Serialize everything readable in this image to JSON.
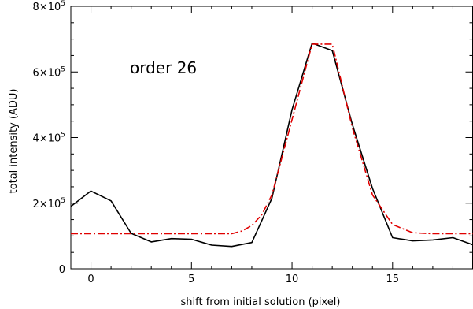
{
  "chart_data": {
    "type": "line",
    "title": "",
    "xlabel": "shift from initial solution (pixel)",
    "ylabel": "total intensity (ADU)",
    "annotation": "order 26",
    "xlim": [
      -1,
      19
    ],
    "ylim": [
      0,
      800000
    ],
    "x_ticks": [
      {
        "value": 0,
        "label": "0"
      },
      {
        "value": 5,
        "label": "5"
      },
      {
        "value": 10,
        "label": "10"
      },
      {
        "value": 15,
        "label": "15"
      }
    ],
    "y_ticks": [
      {
        "value": 0,
        "base": "0",
        "exp": ""
      },
      {
        "value": 200000,
        "base": "2×10",
        "exp": "5"
      },
      {
        "value": 400000,
        "base": "4×10",
        "exp": "5"
      },
      {
        "value": 600000,
        "base": "6×10",
        "exp": "5"
      },
      {
        "value": 800000,
        "base": "8×10",
        "exp": "5"
      }
    ],
    "grid": false,
    "series": [
      {
        "style": "solid",
        "color": "#000000",
        "points": [
          [
            -1,
            190000
          ],
          [
            0,
            237000
          ],
          [
            1,
            207000
          ],
          [
            2,
            108000
          ],
          [
            3,
            82000
          ],
          [
            4,
            92000
          ],
          [
            5,
            90000
          ],
          [
            6,
            72000
          ],
          [
            7,
            68000
          ],
          [
            8,
            80000
          ],
          [
            9,
            215000
          ],
          [
            10,
            485000
          ],
          [
            11,
            688000
          ],
          [
            12,
            665000
          ],
          [
            13,
            440000
          ],
          [
            14,
            245000
          ],
          [
            15,
            95000
          ],
          [
            16,
            85000
          ],
          [
            17,
            88000
          ],
          [
            18,
            95000
          ],
          [
            19,
            73000
          ]
        ]
      },
      {
        "style": "dash-dot",
        "color": "#e00000",
        "points": [
          [
            -1,
            107000
          ],
          [
            7,
            107000
          ],
          [
            7.5,
            115000
          ],
          [
            8,
            132000
          ],
          [
            8.5,
            165000
          ],
          [
            9,
            225000
          ],
          [
            10,
            455000
          ],
          [
            11,
            685000
          ],
          [
            12,
            685000
          ],
          [
            13,
            430000
          ],
          [
            14,
            225000
          ],
          [
            15,
            135000
          ],
          [
            16,
            110000
          ],
          [
            17,
            107000
          ],
          [
            19,
            107000
          ]
        ]
      }
    ]
  }
}
